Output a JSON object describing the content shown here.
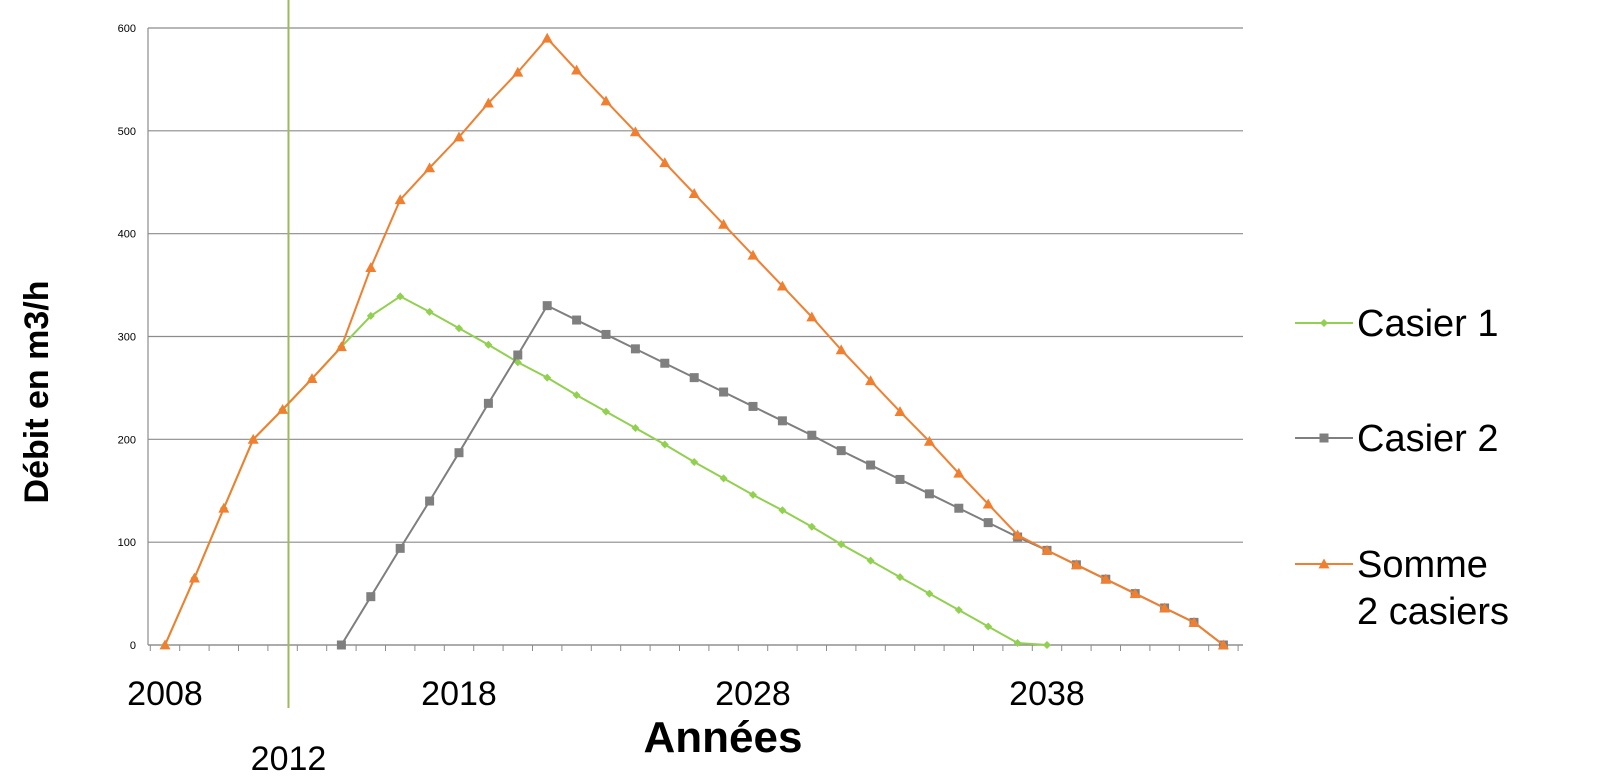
{
  "chart_data": {
    "type": "line",
    "xlabel": "Années",
    "ylabel": "Débit en m3/h",
    "ylim": [
      0,
      600
    ],
    "xlim": [
      2008,
      2045
    ],
    "y_ticks": [
      "0",
      "100",
      "200",
      "300",
      "400",
      "500",
      "600"
    ],
    "x_ticks": [
      {
        "value": 2008,
        "label": "2008"
      },
      {
        "value": 2018,
        "label": "2018"
      },
      {
        "value": 2028,
        "label": "2028"
      },
      {
        "value": 2038,
        "label": "2038"
      }
    ],
    "vertical_marker": {
      "value": 2012.2,
      "label": "2012",
      "color": "#9BBB59"
    },
    "grid": "horizontal",
    "legend_position": "right",
    "series": [
      {
        "name": "Casier 1",
        "color": "#92D050",
        "marker": "diamond",
        "x": [
          2008,
          2009,
          2010,
          2011,
          2012,
          2013,
          2014,
          2015,
          2016,
          2017,
          2018,
          2019,
          2020,
          2021,
          2022,
          2023,
          2024,
          2025,
          2026,
          2027,
          2028,
          2029,
          2030,
          2031,
          2032,
          2033,
          2034,
          2035,
          2036,
          2037,
          2038
        ],
        "values": [
          0,
          65,
          133,
          200,
          229,
          259,
          290,
          320,
          339,
          324,
          308,
          292,
          275,
          260,
          243,
          227,
          211,
          195,
          178,
          162,
          146,
          131,
          115,
          98,
          82,
          66,
          50,
          34,
          18,
          2,
          0
        ]
      },
      {
        "name": "Casier 2",
        "color": "#7F7F7F",
        "marker": "square",
        "x": [
          2014,
          2015,
          2016,
          2017,
          2018,
          2019,
          2020,
          2021,
          2022,
          2023,
          2024,
          2025,
          2026,
          2027,
          2028,
          2029,
          2030,
          2031,
          2032,
          2033,
          2034,
          2035,
          2036,
          2037,
          2038,
          2039,
          2040,
          2041,
          2042,
          2043,
          2044
        ],
        "values": [
          0,
          47,
          94,
          140,
          187,
          235,
          282,
          330,
          316,
          302,
          288,
          274,
          260,
          246,
          232,
          218,
          204,
          189,
          175,
          161,
          147,
          133,
          119,
          105,
          92,
          78,
          64,
          50,
          36,
          22,
          0
        ]
      },
      {
        "name": "Somme 2 casiers",
        "color": "#F07F30",
        "marker": "triangle",
        "x": [
          2008,
          2009,
          2010,
          2011,
          2012,
          2013,
          2014,
          2015,
          2016,
          2017,
          2018,
          2019,
          2020,
          2021,
          2022,
          2023,
          2024,
          2025,
          2026,
          2027,
          2028,
          2029,
          2030,
          2031,
          2032,
          2033,
          2034,
          2035,
          2036,
          2037,
          2038,
          2039,
          2040,
          2041,
          2042,
          2043,
          2044
        ],
        "values": [
          0,
          65,
          133,
          200,
          229,
          259,
          290,
          367,
          433,
          464,
          494,
          527,
          557,
          590,
          559,
          529,
          499,
          469,
          439,
          409,
          379,
          349,
          319,
          287,
          257,
          227,
          198,
          167,
          137,
          107,
          92,
          78,
          64,
          50,
          36,
          22,
          0
        ]
      }
    ]
  }
}
